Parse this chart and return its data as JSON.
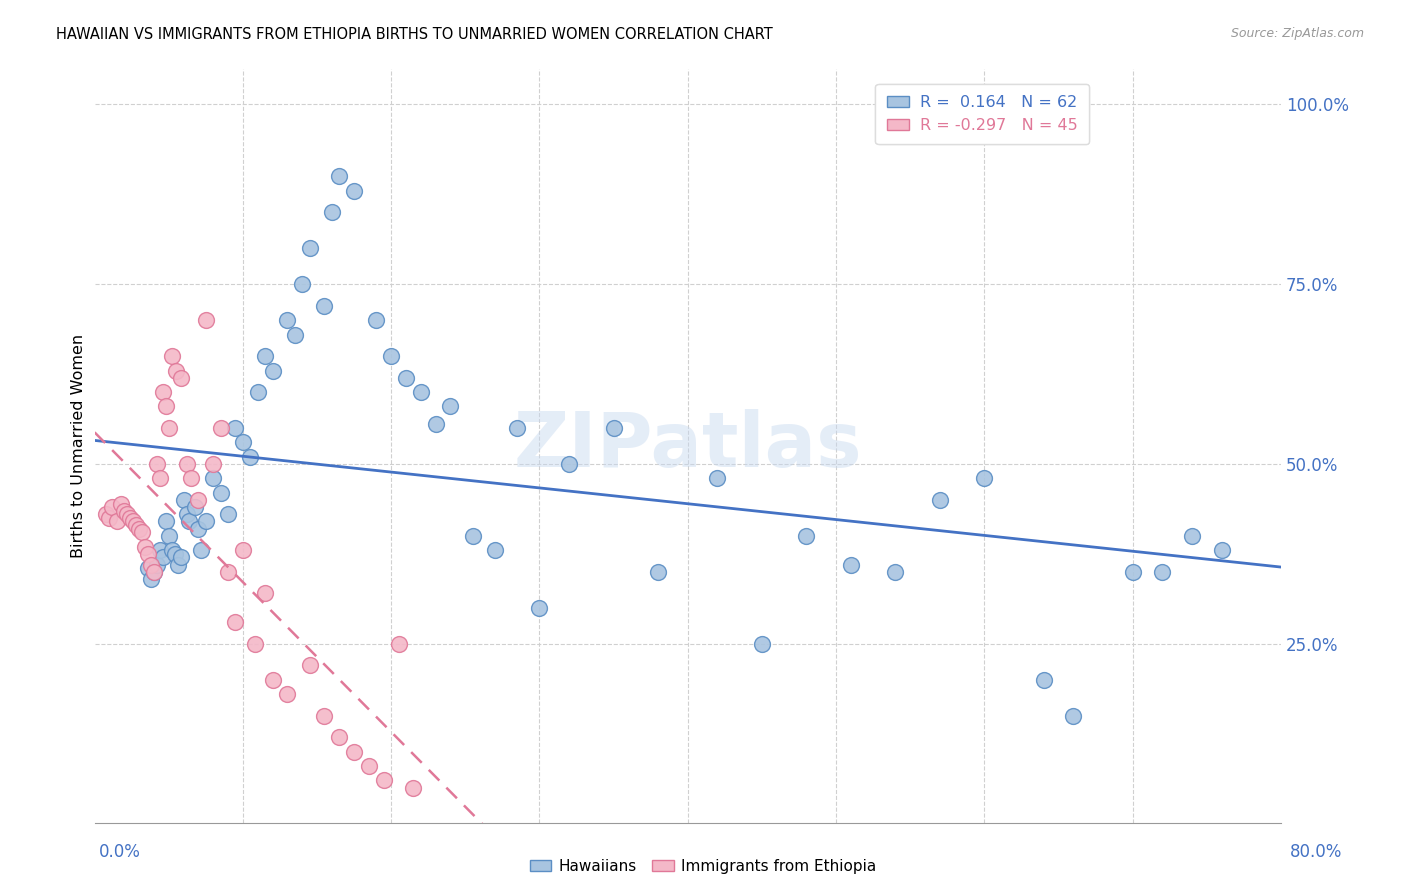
{
  "title": "HAWAIIAN VS IMMIGRANTS FROM ETHIOPIA BIRTHS TO UNMARRIED WOMEN CORRELATION CHART",
  "source": "Source: ZipAtlas.com",
  "ylabel": "Births to Unmarried Women",
  "hawaii_color": "#a8c4e0",
  "hawaii_edge_color": "#5b8ec4",
  "hawaii_line_color": "#4472c4",
  "ethiopia_color": "#f4b8c8",
  "ethiopia_edge_color": "#e07898",
  "ethiopia_line_color": "#e07898",
  "legend_hawaii": "R =  0.164   N = 62",
  "legend_ethiopia": "R = -0.297   N = 45",
  "watermark": "ZIPatlas",
  "hawaii_x": [
    0.036,
    0.038,
    0.04,
    0.042,
    0.044,
    0.046,
    0.048,
    0.05,
    0.052,
    0.054,
    0.056,
    0.058,
    0.06,
    0.062,
    0.064,
    0.068,
    0.07,
    0.072,
    0.075,
    0.08,
    0.085,
    0.09,
    0.095,
    0.1,
    0.105,
    0.11,
    0.115,
    0.12,
    0.13,
    0.135,
    0.14,
    0.145,
    0.155,
    0.16,
    0.165,
    0.175,
    0.19,
    0.2,
    0.21,
    0.22,
    0.23,
    0.24,
    0.255,
    0.27,
    0.285,
    0.3,
    0.32,
    0.35,
    0.38,
    0.42,
    0.45,
    0.48,
    0.51,
    0.54,
    0.57,
    0.6,
    0.64,
    0.66,
    0.7,
    0.72,
    0.74,
    0.76
  ],
  "hawaii_y": [
    0.355,
    0.34,
    0.35,
    0.36,
    0.38,
    0.37,
    0.42,
    0.4,
    0.38,
    0.375,
    0.36,
    0.37,
    0.45,
    0.43,
    0.42,
    0.44,
    0.41,
    0.38,
    0.42,
    0.48,
    0.46,
    0.43,
    0.55,
    0.53,
    0.51,
    0.6,
    0.65,
    0.63,
    0.7,
    0.68,
    0.75,
    0.8,
    0.72,
    0.85,
    0.9,
    0.88,
    0.7,
    0.65,
    0.62,
    0.6,
    0.555,
    0.58,
    0.4,
    0.38,
    0.55,
    0.3,
    0.5,
    0.55,
    0.35,
    0.48,
    0.25,
    0.4,
    0.36,
    0.35,
    0.45,
    0.48,
    0.2,
    0.15,
    0.35,
    0.35,
    0.4,
    0.38
  ],
  "ethiopia_x": [
    0.008,
    0.01,
    0.012,
    0.015,
    0.018,
    0.02,
    0.022,
    0.024,
    0.026,
    0.028,
    0.03,
    0.032,
    0.034,
    0.036,
    0.038,
    0.04,
    0.042,
    0.044,
    0.046,
    0.048,
    0.05,
    0.052,
    0.055,
    0.058,
    0.062,
    0.065,
    0.07,
    0.075,
    0.08,
    0.085,
    0.09,
    0.095,
    0.1,
    0.108,
    0.115,
    0.12,
    0.13,
    0.145,
    0.155,
    0.165,
    0.175,
    0.185,
    0.195,
    0.205,
    0.215
  ],
  "ethiopia_y": [
    0.43,
    0.425,
    0.44,
    0.42,
    0.445,
    0.435,
    0.43,
    0.425,
    0.42,
    0.415,
    0.41,
    0.405,
    0.385,
    0.375,
    0.36,
    0.35,
    0.5,
    0.48,
    0.6,
    0.58,
    0.55,
    0.65,
    0.63,
    0.62,
    0.5,
    0.48,
    0.45,
    0.7,
    0.5,
    0.55,
    0.35,
    0.28,
    0.38,
    0.25,
    0.32,
    0.2,
    0.18,
    0.22,
    0.15,
    0.12,
    0.1,
    0.08,
    0.06,
    0.25,
    0.05
  ],
  "xlim": [
    0.0,
    0.8
  ],
  "ylim": [
    0.0,
    1.05
  ],
  "xgrid_ticks": [
    0.1,
    0.2,
    0.3,
    0.4,
    0.5,
    0.6,
    0.7
  ],
  "yticks": [
    0.25,
    0.5,
    0.75,
    1.0
  ],
  "ytick_labels": [
    "25.0%",
    "50.0%",
    "75.0%",
    "100.0%"
  ]
}
